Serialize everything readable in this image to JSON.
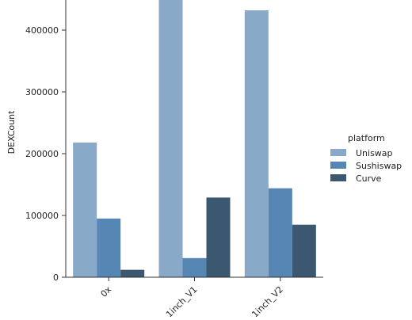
{
  "chart_data": {
    "type": "bar",
    "categories": [
      "0x",
      "1inch_V1",
      "1inch_V2"
    ],
    "series": [
      {
        "name": "Uniswap",
        "values": [
          218000,
          455000,
          432000
        ],
        "color": "#88a9c8"
      },
      {
        "name": "Sushiswap",
        "values": [
          95000,
          31000,
          144000
        ],
        "color": "#5686b4"
      },
      {
        "name": "Curve",
        "values": [
          12000,
          129000,
          85000
        ],
        "color": "#3c5870"
      }
    ],
    "ylabel": "DEXCount",
    "xlabel": "",
    "ylim": [
      0,
      450000
    ],
    "yticks": [
      0,
      100000,
      200000,
      300000,
      400000
    ],
    "legend": {
      "title": "platform",
      "placement": "right"
    },
    "grid": false
  }
}
